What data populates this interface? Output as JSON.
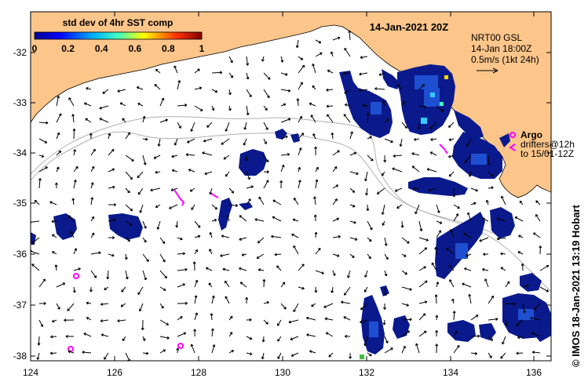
{
  "map": {
    "date_title": "14-Jan-2021 20Z",
    "x_ticks": [
      "124",
      "126",
      "128",
      "130",
      "132",
      "134",
      "136"
    ],
    "y_ticks": [
      "-32",
      "-33",
      "-34",
      "-35",
      "-36",
      "-37",
      "-38"
    ],
    "colors": {
      "land": "#fcc58a",
      "ocean": "#ffffff",
      "sst_patch_dark": "#0a1a8c",
      "sst_patch_mid": "#1f4fd1",
      "argo_marker": "#ff00ff",
      "bathy_contour": "#b0b0b0",
      "arrow": "#000000"
    }
  },
  "colorbar": {
    "title": "std dev of 4hr SST comp",
    "ticks": [
      "0",
      "0.2",
      "0.4",
      "0.6",
      "0.8",
      "1"
    ],
    "range": [
      0,
      1
    ]
  },
  "legend": {
    "product": "NRT00 GSL",
    "time": "14-Jan 18:00Z",
    "scale": "0.5m/s (1kt 24h)",
    "argo_label": "Argo",
    "drifters_line1": "drifters@12h",
    "drifters_line2": "to 15/01-12Z"
  },
  "footer": {
    "credit": "© IMOS 18-Jan-2021 13:19 Hobart"
  }
}
